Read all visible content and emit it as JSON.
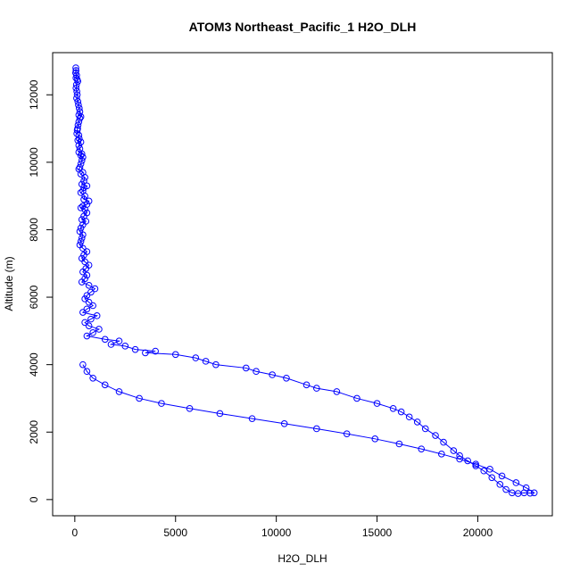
{
  "chart_data": {
    "type": "line",
    "title": "ATOM3 Northeast_Pacific_1 H2O_DLH",
    "xlabel": "H2O_DLH",
    "ylabel": "Altitude (m)",
    "xlim": [
      -1100,
      23700
    ],
    "ylim": [
      -480,
      13250
    ],
    "xticks": [
      0,
      5000,
      10000,
      15000,
      20000
    ],
    "yticks": [
      0,
      2000,
      4000,
      6000,
      8000,
      10000,
      12000
    ],
    "grid": false,
    "color": "#0000FF",
    "series": [
      {
        "points": [
          [
            50,
            12800
          ],
          [
            60,
            12720
          ],
          [
            40,
            12650
          ],
          [
            90,
            12580
          ],
          [
            60,
            12500
          ],
          [
            120,
            12450
          ],
          [
            150,
            12400
          ],
          [
            80,
            12300
          ],
          [
            60,
            12200
          ],
          [
            100,
            12100
          ],
          [
            120,
            12000
          ],
          [
            90,
            11900
          ],
          [
            150,
            11800
          ],
          [
            180,
            11700
          ],
          [
            220,
            11600
          ],
          [
            250,
            11500
          ],
          [
            200,
            11400
          ],
          [
            300,
            11350
          ],
          [
            250,
            11300
          ],
          [
            200,
            11200
          ],
          [
            160,
            11100
          ],
          [
            140,
            11000
          ],
          [
            120,
            10950
          ],
          [
            100,
            10850
          ],
          [
            200,
            10800
          ],
          [
            220,
            10700
          ],
          [
            150,
            10650
          ],
          [
            300,
            10600
          ],
          [
            200,
            10500
          ],
          [
            250,
            10400
          ],
          [
            200,
            10300
          ],
          [
            350,
            10250
          ],
          [
            300,
            10200
          ],
          [
            400,
            10150
          ],
          [
            350,
            10050
          ],
          [
            300,
            9950
          ],
          [
            250,
            9850
          ],
          [
            200,
            9800
          ],
          [
            400,
            9700
          ],
          [
            300,
            9650
          ],
          [
            500,
            9550
          ],
          [
            450,
            9450
          ],
          [
            350,
            9350
          ],
          [
            600,
            9300
          ],
          [
            450,
            9250
          ],
          [
            400,
            9150
          ],
          [
            300,
            9100
          ],
          [
            500,
            9000
          ],
          [
            450,
            8900
          ],
          [
            700,
            8850
          ],
          [
            600,
            8750
          ],
          [
            400,
            8700
          ],
          [
            300,
            8650
          ],
          [
            500,
            8600
          ],
          [
            600,
            8500
          ],
          [
            450,
            8400
          ],
          [
            350,
            8300
          ],
          [
            550,
            8250
          ],
          [
            400,
            8150
          ],
          [
            300,
            8050
          ],
          [
            250,
            7950
          ],
          [
            400,
            7850
          ],
          [
            350,
            7750
          ],
          [
            300,
            7650
          ],
          [
            250,
            7550
          ],
          [
            400,
            7450
          ],
          [
            600,
            7350
          ],
          [
            450,
            7250
          ],
          [
            350,
            7150
          ],
          [
            500,
            7050
          ],
          [
            700,
            6950
          ],
          [
            550,
            6850
          ],
          [
            400,
            6750
          ],
          [
            600,
            6650
          ],
          [
            500,
            6550
          ],
          [
            350,
            6450
          ],
          [
            700,
            6350
          ],
          [
            1000,
            6250
          ],
          [
            800,
            6150
          ],
          [
            600,
            6050
          ],
          [
            500,
            5950
          ],
          [
            700,
            5850
          ],
          [
            900,
            5750
          ],
          [
            600,
            5650
          ],
          [
            400,
            5550
          ],
          [
            1100,
            5450
          ],
          [
            800,
            5350
          ],
          [
            500,
            5250
          ],
          [
            700,
            5150
          ],
          [
            1200,
            5050
          ],
          [
            900,
            4950
          ],
          [
            600,
            4850
          ],
          [
            1500,
            4750
          ],
          [
            2200,
            4700
          ],
          [
            1800,
            4600
          ],
          [
            2500,
            4550
          ],
          [
            3000,
            4450
          ],
          [
            4000,
            4400
          ],
          [
            3500,
            4350
          ],
          [
            5000,
            4300
          ],
          [
            6000,
            4200
          ],
          [
            6500,
            4100
          ],
          [
            7000,
            4000
          ],
          [
            8500,
            3900
          ],
          [
            9000,
            3800
          ],
          [
            9800,
            3700
          ],
          [
            10500,
            3600
          ],
          [
            11500,
            3400
          ],
          [
            12000,
            3300
          ],
          [
            13000,
            3200
          ],
          [
            14000,
            3000
          ],
          [
            15000,
            2850
          ],
          [
            15800,
            2700
          ],
          [
            16200,
            2600
          ],
          [
            16600,
            2450
          ],
          [
            17000,
            2300
          ],
          [
            17400,
            2100
          ],
          [
            17900,
            1900
          ],
          [
            18300,
            1700
          ],
          [
            18800,
            1450
          ],
          [
            19100,
            1300
          ],
          [
            19500,
            1150
          ],
          [
            19900,
            1000
          ],
          [
            20300,
            850
          ],
          [
            20700,
            650
          ],
          [
            21100,
            450
          ],
          [
            21400,
            300
          ],
          [
            21700,
            200
          ],
          [
            22000,
            180
          ],
          [
            22300,
            200
          ],
          [
            22600,
            190
          ],
          [
            22800,
            200
          ],
          [
            22400,
            350
          ],
          [
            21900,
            500
          ],
          [
            21200,
            700
          ],
          [
            20600,
            900
          ],
          [
            19900,
            1050
          ],
          [
            19100,
            1200
          ],
          [
            18200,
            1350
          ],
          [
            17200,
            1500
          ],
          [
            16100,
            1650
          ],
          [
            14900,
            1800
          ],
          [
            13500,
            1950
          ],
          [
            12000,
            2100
          ],
          [
            10400,
            2250
          ],
          [
            8800,
            2400
          ],
          [
            7200,
            2550
          ],
          [
            5700,
            2700
          ],
          [
            4300,
            2850
          ],
          [
            3200,
            3000
          ],
          [
            2200,
            3200
          ],
          [
            1500,
            3400
          ],
          [
            900,
            3600
          ],
          [
            600,
            3800
          ],
          [
            400,
            4000
          ]
        ]
      }
    ]
  }
}
